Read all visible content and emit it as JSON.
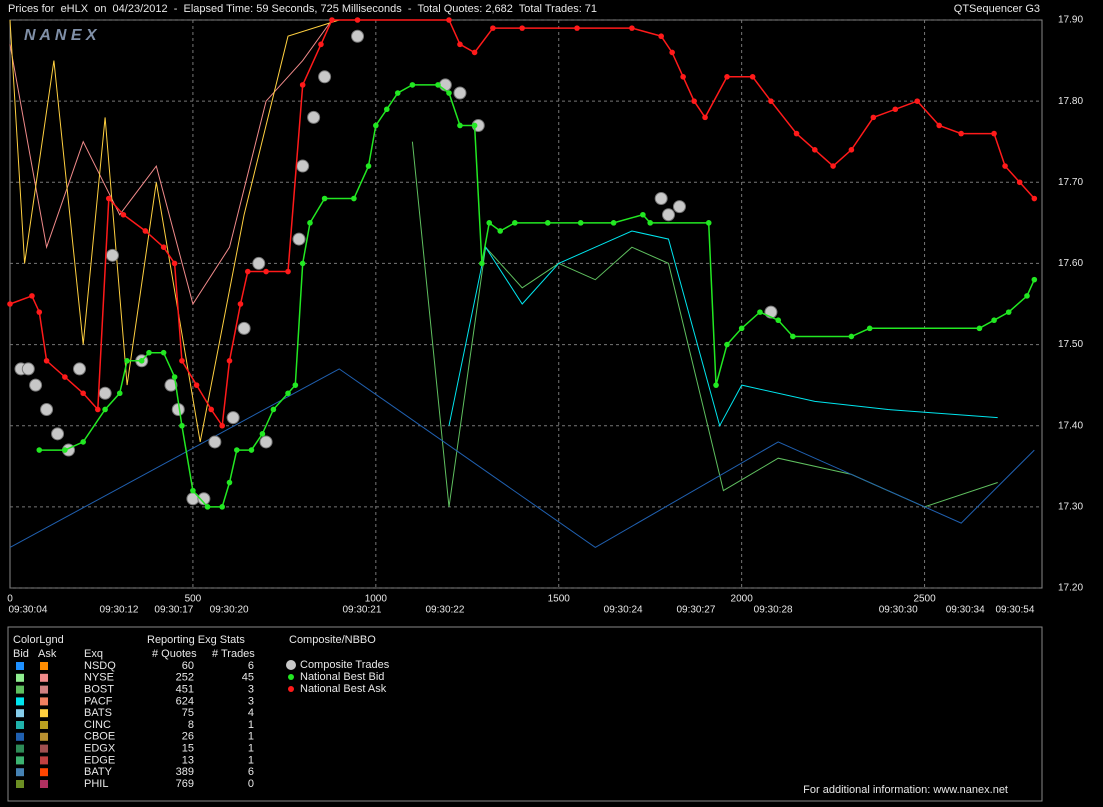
{
  "chart_data": {
    "type": "line",
    "title": "Prices for  eHLX  on  04/23/2012  -  Elapsed Time: 59 Seconds, 725 Milliseconds  -  Total Quotes: 2,682  Total Trades: 71",
    "subtitle": "QTSequencer G3",
    "logo": "N A N E X",
    "footer": "For additional information: www.nanex.net",
    "xlim": [
      0,
      2821
    ],
    "ylim": [
      17.2,
      17.9
    ],
    "xticks": [
      0,
      500,
      1000,
      1500,
      2000,
      2500
    ],
    "x_labels": [
      {
        "value": 49,
        "label": "09:30:04"
      },
      {
        "value": 298,
        "label": "09:30:12"
      },
      {
        "value": 448,
        "label": "09:30:17"
      },
      {
        "value": 599,
        "label": "09:30:20"
      },
      {
        "value": 962,
        "label": "09:30:21"
      },
      {
        "value": 1189,
        "label": "09:30:22"
      },
      {
        "value": 1676,
        "label": "09:30:24"
      },
      {
        "value": 1875,
        "label": "09:30:27"
      },
      {
        "value": 2086,
        "label": "09:30:28"
      },
      {
        "value": 2428,
        "label": "09:30:30"
      },
      {
        "value": 2611,
        "label": "09:30:34"
      },
      {
        "value": 2747,
        "label": "09:30:54"
      }
    ],
    "yticks": [
      {
        "value": 17.2,
        "label": "17.20"
      },
      {
        "value": 17.3,
        "label": "17.30"
      },
      {
        "value": 17.4,
        "label": "17.40"
      },
      {
        "value": 17.5,
        "label": "17.50"
      },
      {
        "value": 17.6,
        "label": "17.60"
      },
      {
        "value": 17.7,
        "label": "17.70"
      },
      {
        "value": 17.8,
        "label": "17.80"
      },
      {
        "value": 17.9,
        "label": "17.90"
      }
    ],
    "grid": true,
    "legend_title": "Composite/NBBO",
    "series": [
      {
        "name": "Composite Trades",
        "color": "#c8c8c8",
        "marker": "trade",
        "x": [
          30,
          50,
          70,
          100,
          130,
          160,
          190,
          260,
          280,
          360,
          440,
          460,
          500,
          530,
          560,
          610,
          640,
          680,
          700,
          790,
          800,
          830,
          860,
          950,
          1190,
          1230,
          1280,
          1780,
          1800,
          1830,
          2080
        ],
        "values": [
          17.47,
          17.47,
          17.45,
          17.42,
          17.39,
          17.37,
          17.47,
          17.44,
          17.61,
          17.48,
          17.45,
          17.42,
          17.31,
          17.31,
          17.38,
          17.41,
          17.52,
          17.6,
          17.38,
          17.63,
          17.72,
          17.78,
          17.83,
          17.88,
          17.82,
          17.81,
          17.77,
          17.68,
          17.66,
          17.67,
          17.54
        ]
      },
      {
        "name": "National Best Bid",
        "color": "#22e822",
        "marker": "dot",
        "x": [
          80,
          150,
          200,
          260,
          300,
          320,
          360,
          380,
          420,
          450,
          470,
          500,
          540,
          580,
          600,
          620,
          660,
          690,
          720,
          760,
          780,
          800,
          820,
          860,
          940,
          980,
          1000,
          1030,
          1060,
          1100,
          1170,
          1200,
          1230,
          1270,
          1290,
          1310,
          1340,
          1380,
          1470,
          1560,
          1650,
          1730,
          1750,
          1910,
          1930,
          1960,
          2000,
          2050,
          2100,
          2140,
          2300,
          2350,
          2650,
          2690,
          2730,
          2780,
          2800
        ],
        "values": [
          17.37,
          17.37,
          17.38,
          17.42,
          17.44,
          17.48,
          17.48,
          17.49,
          17.49,
          17.46,
          17.4,
          17.32,
          17.3,
          17.3,
          17.33,
          17.37,
          17.37,
          17.39,
          17.42,
          17.44,
          17.45,
          17.6,
          17.65,
          17.68,
          17.68,
          17.72,
          17.77,
          17.79,
          17.81,
          17.82,
          17.82,
          17.81,
          17.77,
          17.77,
          17.6,
          17.65,
          17.64,
          17.65,
          17.65,
          17.65,
          17.65,
          17.66,
          17.65,
          17.65,
          17.45,
          17.5,
          17.52,
          17.54,
          17.53,
          17.51,
          17.51,
          17.52,
          17.52,
          17.53,
          17.54,
          17.56,
          17.58
        ]
      },
      {
        "name": "National Best Ask",
        "color": "#ff1a1a",
        "marker": "dot",
        "x": [
          0,
          60,
          80,
          100,
          150,
          200,
          240,
          270,
          310,
          370,
          420,
          450,
          470,
          510,
          550,
          580,
          600,
          630,
          650,
          700,
          760,
          800,
          850,
          880,
          950,
          1200,
          1230,
          1270,
          1320,
          1400,
          1550,
          1700,
          1780,
          1810,
          1840,
          1870,
          1900,
          1960,
          2030,
          2080,
          2150,
          2200,
          2250,
          2300,
          2360,
          2420,
          2480,
          2540,
          2600,
          2690,
          2720,
          2760,
          2800
        ],
        "values": [
          17.55,
          17.56,
          17.54,
          17.48,
          17.46,
          17.44,
          17.42,
          17.68,
          17.66,
          17.64,
          17.62,
          17.6,
          17.48,
          17.45,
          17.42,
          17.4,
          17.48,
          17.55,
          17.59,
          17.59,
          17.59,
          17.82,
          17.87,
          17.9,
          17.9,
          17.9,
          17.87,
          17.86,
          17.89,
          17.89,
          17.89,
          17.89,
          17.88,
          17.86,
          17.83,
          17.8,
          17.78,
          17.83,
          17.83,
          17.8,
          17.76,
          17.74,
          17.72,
          17.74,
          17.78,
          17.79,
          17.8,
          17.77,
          17.76,
          17.76,
          17.72,
          17.7,
          17.68
        ]
      }
    ]
  },
  "exchange_table": {
    "title": "ColorLgnd",
    "bid_header": "Bid",
    "ask_header": "Ask",
    "exq_header": "Exq",
    "stats_title": "Reporting Exg Stats",
    "quotes_header": "# Quotes",
    "trades_header": "# Trades",
    "rows": [
      {
        "exq": "NSDQ",
        "quotes": 60,
        "trades": 6,
        "bid_color": "#1e90ff",
        "ask_color": "#ff8c00"
      },
      {
        "exq": "NYSE",
        "quotes": 252,
        "trades": 45,
        "bid_color": "#90ee90",
        "ask_color": "#f08a8a",
        "ask_x": [
          0,
          100,
          200,
          300,
          400,
          500,
          600,
          700,
          800,
          880
        ],
        "ask_values": [
          17.87,
          17.62,
          17.75,
          17.66,
          17.72,
          17.55,
          17.62,
          17.8,
          17.85,
          17.9
        ]
      },
      {
        "exq": "BOST",
        "quotes": 451,
        "trades": 3,
        "bid_color": "#5fbf5f",
        "ask_color": "#d08080",
        "bid_x": [
          1100,
          1200,
          1300,
          1400,
          1500,
          1600,
          1700,
          1800,
          1950,
          2100,
          2300,
          2500,
          2700
        ],
        "bid_values": [
          17.75,
          17.3,
          17.62,
          17.57,
          17.6,
          17.58,
          17.62,
          17.6,
          17.32,
          17.36,
          17.34,
          17.3,
          17.33
        ]
      },
      {
        "exq": "PACF",
        "quotes": 624,
        "trades": 3,
        "bid_color": "#00e5ee",
        "ask_color": "#f08060",
        "bid_x": [
          1200,
          1300,
          1400,
          1500,
          1600,
          1700,
          1800,
          1940,
          2000,
          2200,
          2400,
          2700
        ],
        "bid_values": [
          17.4,
          17.62,
          17.55,
          17.6,
          17.62,
          17.64,
          17.63,
          17.4,
          17.45,
          17.43,
          17.42,
          17.41
        ]
      },
      {
        "exq": "BATS",
        "quotes": 75,
        "trades": 4,
        "bid_color": "#87ceeb",
        "ask_color": "#ffd040",
        "ask_x": [
          0,
          40,
          120,
          200,
          260,
          320,
          400,
          520,
          640,
          760,
          900
        ],
        "ask_values": [
          17.9,
          17.6,
          17.85,
          17.5,
          17.78,
          17.45,
          17.7,
          17.38,
          17.66,
          17.88,
          17.9
        ]
      },
      {
        "exq": "CINC",
        "quotes": 8,
        "trades": 1,
        "bid_color": "#20b2aa",
        "ask_color": "#b8a020"
      },
      {
        "exq": "CBOE",
        "quotes": 26,
        "trades": 1,
        "bid_color": "#2060b0",
        "ask_color": "#b89030",
        "bid_x": [
          0,
          900,
          1600,
          2100,
          2600,
          2800
        ],
        "bid_values": [
          17.25,
          17.47,
          17.25,
          17.38,
          17.28,
          17.37
        ]
      },
      {
        "exq": "EDGX",
        "quotes": 15,
        "trades": 1,
        "bid_color": "#2e8b57",
        "ask_color": "#a05050"
      },
      {
        "exq": "EDGE",
        "quotes": 13,
        "trades": 1,
        "bid_color": "#3cb371",
        "ask_color": "#c04040"
      },
      {
        "exq": "BATY",
        "quotes": 389,
        "trades": 6,
        "bid_color": "#4682b4",
        "ask_color": "#ff4500"
      },
      {
        "exq": "PHIL",
        "quotes": 769,
        "trades": 0,
        "bid_color": "#6b8e23",
        "ask_color": "#b03060"
      }
    ]
  }
}
